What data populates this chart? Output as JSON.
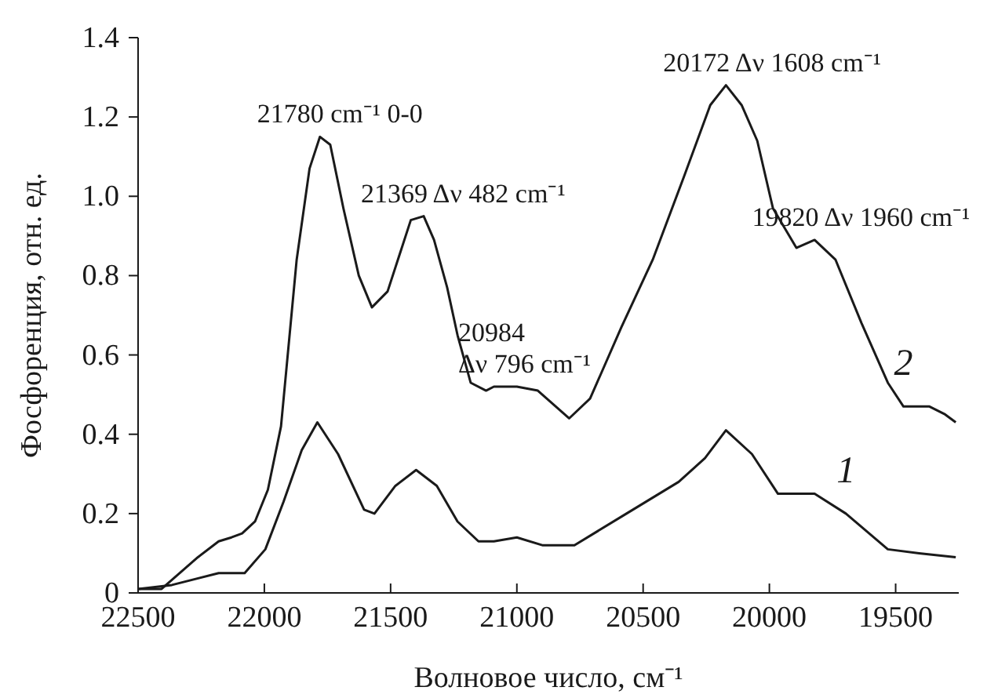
{
  "chart_data": {
    "type": "line",
    "xlabel": "Волновое число, см⁻¹",
    "ylabel": "Фосфоренция, отн. ед.",
    "xlim": [
      22500,
      19250
    ],
    "xticks": [
      22500,
      22000,
      21500,
      21000,
      20500,
      20000,
      19500
    ],
    "ylim": [
      0,
      1.4
    ],
    "yticks": [
      0,
      {
        "value": 0.2,
        "label": "0.2"
      },
      {
        "value": 0.4,
        "label": "0.4"
      },
      {
        "value": 0.6,
        "label": "0.6"
      },
      {
        "value": 0.8,
        "label": "0.8"
      },
      {
        "value": 1,
        "label": "1.0"
      },
      {
        "value": 1.2,
        "label": "1.2"
      },
      {
        "value": 1.4,
        "label": "1.4"
      }
    ],
    "grid": false,
    "marker": "none",
    "line_style": "solid",
    "series": [
      {
        "name": "1",
        "color": "#1a1a1a",
        "x": [
          22500,
          22366,
          22181,
          22078,
          21996,
          21924,
          21852,
          21790,
          21708,
          21605,
          21564,
          21481,
          21399,
          21317,
          21235,
          21152,
          21091,
          21000,
          20897,
          20772,
          20566,
          20359,
          20255,
          20172,
          20069,
          19966,
          19821,
          19697,
          19531,
          19407,
          19262
        ],
        "values": [
          0.01,
          0.02,
          0.05,
          0.05,
          0.11,
          0.23,
          0.36,
          0.43,
          0.35,
          0.21,
          0.2,
          0.27,
          0.31,
          0.27,
          0.18,
          0.13,
          0.13,
          0.14,
          0.12,
          0.12,
          0.2,
          0.28,
          0.34,
          0.41,
          0.35,
          0.25,
          0.25,
          0.2,
          0.11,
          0.1,
          0.09
        ]
      },
      {
        "name": "2",
        "color": "#1a1a1a",
        "x": [
          22500,
          22407,
          22335,
          22263,
          22181,
          22130,
          22088,
          22037,
          21986,
          21934,
          21872,
          21821,
          21780,
          21739,
          21687,
          21626,
          21574,
          21512,
          21420,
          21369,
          21328,
          21276,
          21235,
          21183,
          21122,
          21091,
          21000,
          20917,
          20793,
          20710,
          20586,
          20462,
          20338,
          20234,
          20172,
          20110,
          20048,
          19986,
          19893,
          19821,
          19738,
          19635,
          19531,
          19469,
          19366,
          19304,
          19262
        ],
        "values": [
          0.01,
          0.01,
          0.05,
          0.09,
          0.13,
          0.14,
          0.15,
          0.18,
          0.26,
          0.42,
          0.84,
          1.07,
          1.15,
          1.13,
          0.97,
          0.8,
          0.72,
          0.76,
          0.94,
          0.95,
          0.89,
          0.77,
          0.65,
          0.53,
          0.51,
          0.52,
          0.52,
          0.51,
          0.44,
          0.49,
          0.67,
          0.84,
          1.05,
          1.23,
          1.28,
          1.23,
          1.14,
          0.97,
          0.87,
          0.89,
          0.84,
          0.68,
          0.53,
          0.47,
          0.47,
          0.45,
          0.43
        ]
      }
    ],
    "annotations": [
      {
        "text": "21780 cm⁻¹ 0-0",
        "x": 21780,
        "y": 1.15
      },
      {
        "text": "21369 Δν 482 cm⁻¹",
        "x": 21369,
        "y": 0.95
      },
      {
        "text": "20984\nΔν 796 cm⁻¹",
        "x": 20984,
        "y": 0.52
      },
      {
        "text": "20172 Δν 1608 cm⁻¹",
        "x": 20172,
        "y": 1.28
      },
      {
        "text": "19820 Δν 1960 cm⁻¹",
        "x": 19820,
        "y": 0.89
      }
    ]
  }
}
